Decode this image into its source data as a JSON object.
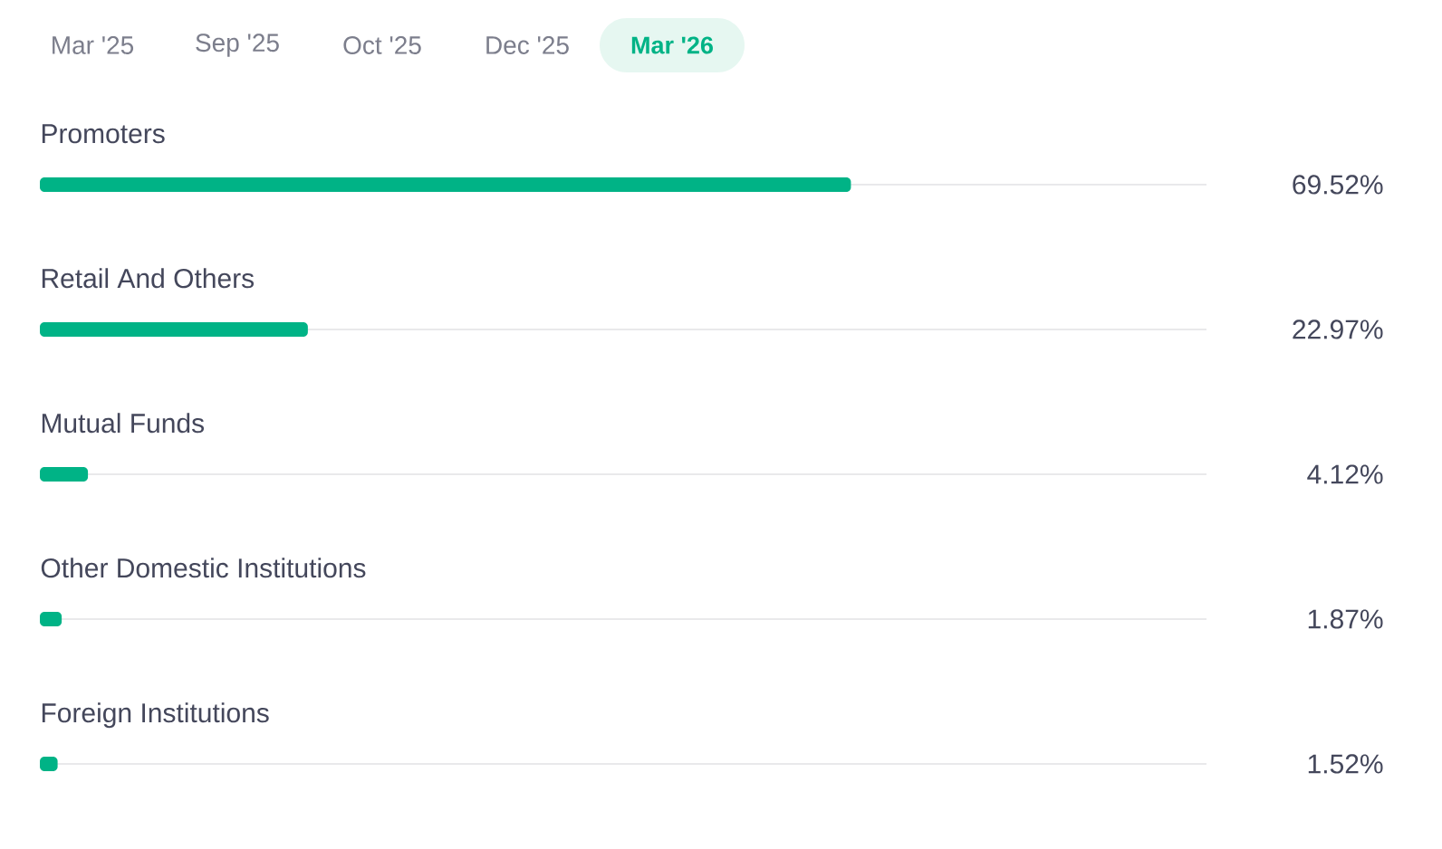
{
  "chart_data": {
    "type": "bar",
    "orientation": "horizontal",
    "categories": [
      "Promoters",
      "Retail And Others",
      "Mutual Funds",
      "Other Domestic Institutions",
      "Foreign Institutions"
    ],
    "values": [
      69.52,
      22.97,
      4.12,
      1.87,
      1.52
    ],
    "value_labels": [
      "69.52%",
      "22.97%",
      "4.12%",
      "1.87%",
      "1.52%"
    ],
    "color": "#00b386",
    "xlim": [
      0,
      100
    ],
    "grid": "y",
    "tick_labels": "y",
    "annotations": [
      "Mar '25",
      "Sep '25",
      "Oct '25",
      "Dec '25",
      "Mar '26"
    ]
  }
}
